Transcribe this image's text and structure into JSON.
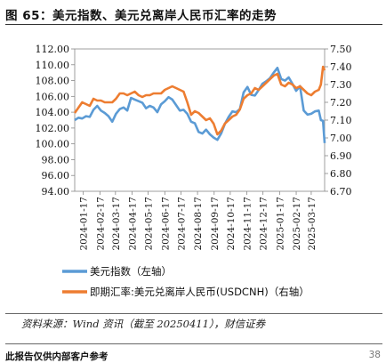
{
  "header": {
    "title": "图 65：美元指数、美元兑离岸人民币汇率的走势"
  },
  "source": "资料来源：Wind 资讯（截至 20250411），财信证券",
  "footer": {
    "left": "此报告仅供内部客户参考",
    "page": "38"
  },
  "colors": {
    "usd_index": "#5b9bd5",
    "usdcnh": "#ed7d31",
    "frame": "#888888"
  },
  "chart_data": {
    "type": "line",
    "title": "",
    "left_axis": {
      "min": 94,
      "max": 112,
      "step": 2,
      "decimals": 2
    },
    "right_axis": {
      "min": 6.7,
      "max": 7.5,
      "step": 0.1,
      "decimals": 2
    },
    "x_range": [
      "2024-01-01",
      "2025-04-11"
    ],
    "x_ticks": [
      "2024-01-17",
      "2024-02-17",
      "2024-03-17",
      "2024-04-17",
      "2024-05-17",
      "2024-06-17",
      "2024-07-17",
      "2024-08-17",
      "2024-09-17",
      "2024-10-17",
      "2024-11-17",
      "2024-12-17",
      "2025-01-17",
      "2025-02-17",
      "2025-03-17"
    ],
    "series": [
      {
        "name": "美元指数（左轴）",
        "axis": "left",
        "points": [
          [
            "2024-01-01",
            103.0
          ],
          [
            "2024-01-08",
            103.3
          ],
          [
            "2024-01-15",
            103.2
          ],
          [
            "2024-01-22",
            103.5
          ],
          [
            "2024-01-29",
            103.4
          ],
          [
            "2024-02-05",
            104.3
          ],
          [
            "2024-02-12",
            104.8
          ],
          [
            "2024-02-19",
            104.2
          ],
          [
            "2024-02-26",
            103.9
          ],
          [
            "2024-03-04",
            103.5
          ],
          [
            "2024-03-11",
            102.8
          ],
          [
            "2024-03-18",
            103.8
          ],
          [
            "2024-03-25",
            104.4
          ],
          [
            "2024-04-01",
            104.6
          ],
          [
            "2024-04-08",
            104.2
          ],
          [
            "2024-04-15",
            105.8
          ],
          [
            "2024-04-22",
            105.6
          ],
          [
            "2024-04-29",
            105.4
          ],
          [
            "2024-05-06",
            105.2
          ],
          [
            "2024-05-13",
            104.5
          ],
          [
            "2024-05-20",
            104.8
          ],
          [
            "2024-05-27",
            104.6
          ],
          [
            "2024-06-03",
            104.0
          ],
          [
            "2024-06-10",
            105.0
          ],
          [
            "2024-06-17",
            105.4
          ],
          [
            "2024-06-24",
            105.9
          ],
          [
            "2024-07-01",
            105.6
          ],
          [
            "2024-07-08",
            104.9
          ],
          [
            "2024-07-15",
            104.2
          ],
          [
            "2024-07-22",
            104.3
          ],
          [
            "2024-07-29",
            103.8
          ],
          [
            "2024-08-05",
            102.8
          ],
          [
            "2024-08-12",
            102.6
          ],
          [
            "2024-08-19",
            101.5
          ],
          [
            "2024-08-26",
            101.3
          ],
          [
            "2024-09-02",
            101.8
          ],
          [
            "2024-09-09",
            101.2
          ],
          [
            "2024-09-16",
            100.8
          ],
          [
            "2024-09-23",
            100.5
          ],
          [
            "2024-09-30",
            101.3
          ],
          [
            "2024-10-07",
            102.5
          ],
          [
            "2024-10-14",
            103.4
          ],
          [
            "2024-10-21",
            104.1
          ],
          [
            "2024-10-28",
            104.0
          ],
          [
            "2024-11-04",
            104.4
          ],
          [
            "2024-11-11",
            106.5
          ],
          [
            "2024-11-18",
            107.2
          ],
          [
            "2024-11-25",
            106.2
          ],
          [
            "2024-12-02",
            106.1
          ],
          [
            "2024-12-09",
            106.8
          ],
          [
            "2024-12-16",
            107.6
          ],
          [
            "2024-12-23",
            107.9
          ],
          [
            "2024-12-30",
            108.3
          ],
          [
            "2025-01-06",
            109.0
          ],
          [
            "2025-01-13",
            109.6
          ],
          [
            "2025-01-20",
            108.2
          ],
          [
            "2025-01-27",
            108.0
          ],
          [
            "2025-02-03",
            108.4
          ],
          [
            "2025-02-10",
            107.6
          ],
          [
            "2025-02-17",
            106.7
          ],
          [
            "2025-02-24",
            107.3
          ],
          [
            "2025-03-03",
            104.2
          ],
          [
            "2025-03-10",
            103.7
          ],
          [
            "2025-03-17",
            103.8
          ],
          [
            "2025-03-24",
            104.1
          ],
          [
            "2025-03-31",
            104.2
          ],
          [
            "2025-04-04",
            103.0
          ],
          [
            "2025-04-08",
            102.9
          ],
          [
            "2025-04-11",
            100.1
          ]
        ]
      },
      {
        "name": "即期汇率:美元兑离岸人民币(USDCNH)（右轴）",
        "axis": "right",
        "points": [
          [
            "2024-01-01",
            7.14
          ],
          [
            "2024-01-08",
            7.17
          ],
          [
            "2024-01-15",
            7.2
          ],
          [
            "2024-01-22",
            7.19
          ],
          [
            "2024-01-29",
            7.18
          ],
          [
            "2024-02-05",
            7.22
          ],
          [
            "2024-02-12",
            7.21
          ],
          [
            "2024-02-19",
            7.21
          ],
          [
            "2024-02-26",
            7.2
          ],
          [
            "2024-03-04",
            7.2
          ],
          [
            "2024-03-11",
            7.2
          ],
          [
            "2024-03-18",
            7.22
          ],
          [
            "2024-03-25",
            7.25
          ],
          [
            "2024-04-01",
            7.25
          ],
          [
            "2024-04-08",
            7.24
          ],
          [
            "2024-04-15",
            7.25
          ],
          [
            "2024-04-22",
            7.26
          ],
          [
            "2024-04-29",
            7.24
          ],
          [
            "2024-05-06",
            7.23
          ],
          [
            "2024-05-13",
            7.24
          ],
          [
            "2024-05-20",
            7.24
          ],
          [
            "2024-05-27",
            7.25
          ],
          [
            "2024-06-03",
            7.25
          ],
          [
            "2024-06-10",
            7.25
          ],
          [
            "2024-06-17",
            7.27
          ],
          [
            "2024-06-24",
            7.28
          ],
          [
            "2024-07-01",
            7.29
          ],
          [
            "2024-07-08",
            7.28
          ],
          [
            "2024-07-15",
            7.27
          ],
          [
            "2024-07-22",
            7.26
          ],
          [
            "2024-07-29",
            7.2
          ],
          [
            "2024-08-05",
            7.13
          ],
          [
            "2024-08-12",
            7.15
          ],
          [
            "2024-08-19",
            7.14
          ],
          [
            "2024-08-26",
            7.12
          ],
          [
            "2024-09-02",
            7.1
          ],
          [
            "2024-09-09",
            7.11
          ],
          [
            "2024-09-16",
            7.08
          ],
          [
            "2024-09-23",
            7.02
          ],
          [
            "2024-09-30",
            7.04
          ],
          [
            "2024-10-07",
            7.08
          ],
          [
            "2024-10-14",
            7.1
          ],
          [
            "2024-10-21",
            7.12
          ],
          [
            "2024-10-28",
            7.13
          ],
          [
            "2024-11-04",
            7.16
          ],
          [
            "2024-11-11",
            7.22
          ],
          [
            "2024-11-18",
            7.24
          ],
          [
            "2024-11-25",
            7.25
          ],
          [
            "2024-12-02",
            7.28
          ],
          [
            "2024-12-09",
            7.27
          ],
          [
            "2024-12-16",
            7.29
          ],
          [
            "2024-12-23",
            7.31
          ],
          [
            "2024-12-30",
            7.33
          ],
          [
            "2025-01-06",
            7.35
          ],
          [
            "2025-01-13",
            7.36
          ],
          [
            "2025-01-20",
            7.3
          ],
          [
            "2025-01-27",
            7.29
          ],
          [
            "2025-02-03",
            7.31
          ],
          [
            "2025-02-10",
            7.3
          ],
          [
            "2025-02-17",
            7.28
          ],
          [
            "2025-02-24",
            7.29
          ],
          [
            "2025-03-03",
            7.27
          ],
          [
            "2025-03-10",
            7.25
          ],
          [
            "2025-03-17",
            7.24
          ],
          [
            "2025-03-24",
            7.26
          ],
          [
            "2025-03-31",
            7.27
          ],
          [
            "2025-04-04",
            7.3
          ],
          [
            "2025-04-08",
            7.4
          ],
          [
            "2025-04-11",
            7.38
          ]
        ]
      }
    ],
    "grid": false,
    "legend_position": "bottom"
  }
}
